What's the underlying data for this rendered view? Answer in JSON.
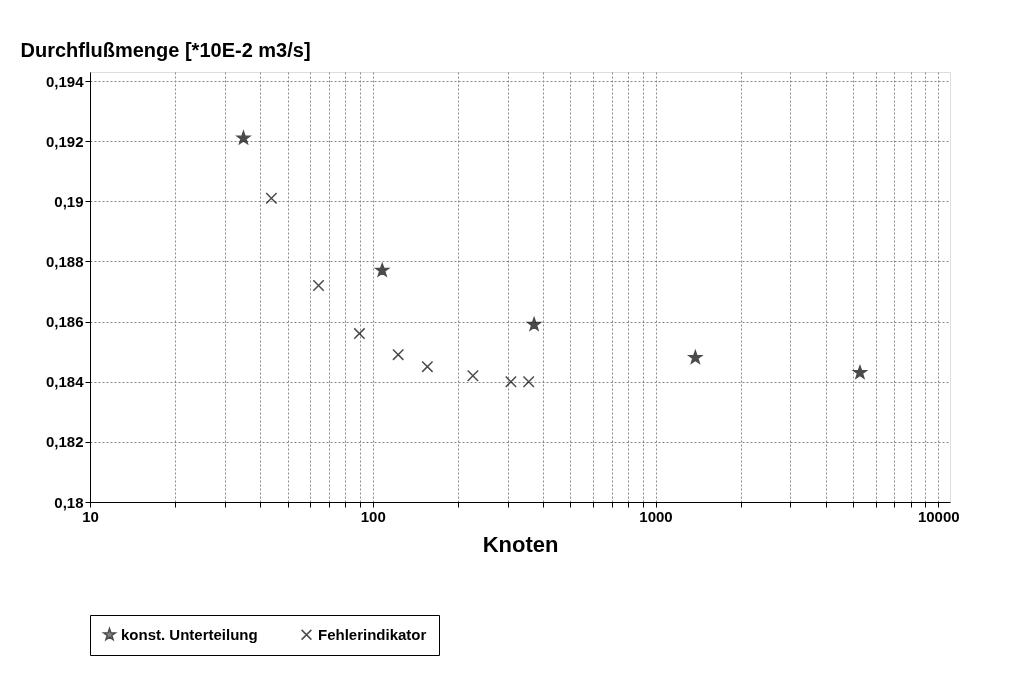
{
  "chart_data": {
    "type": "scatter",
    "ylabel": "Durchflußmenge [*10E-2 m3/s]",
    "xlabel": "Knoten",
    "log": "x",
    "grid": true,
    "legend": "bottom",
    "xlim": [
      10,
      11000
    ],
    "ylim": [
      0.18,
      0.1943
    ],
    "xticks": [
      10,
      {
        "value": 20,
        "label": null
      },
      {
        "value": 30,
        "label": null
      },
      {
        "value": 40,
        "label": null
      },
      {
        "value": 50,
        "label": null
      },
      {
        "value": 60,
        "label": null
      },
      {
        "value": 70,
        "label": null
      },
      {
        "value": 80,
        "label": null
      },
      {
        "value": 90,
        "label": null
      },
      100,
      {
        "value": 200,
        "label": null
      },
      {
        "value": 300,
        "label": null
      },
      {
        "value": 400,
        "label": null
      },
      {
        "value": 500,
        "label": null
      },
      {
        "value": 600,
        "label": null
      },
      {
        "value": 700,
        "label": null
      },
      {
        "value": 800,
        "label": null
      },
      {
        "value": 900,
        "label": null
      },
      1000,
      {
        "value": 2000,
        "label": null
      },
      {
        "value": 3000,
        "label": null
      },
      {
        "value": 4000,
        "label": null
      },
      {
        "value": 5000,
        "label": null
      },
      {
        "value": 6000,
        "label": null
      },
      {
        "value": 7000,
        "label": null
      },
      {
        "value": 8000,
        "label": null
      },
      {
        "value": 9000,
        "label": null
      },
      10000
    ],
    "yticks": [
      {
        "value": 0.18,
        "label": "0,18"
      },
      {
        "value": 0.182,
        "label": "0,182"
      },
      {
        "value": 0.184,
        "label": "0,184"
      },
      {
        "value": 0.186,
        "label": "0,186"
      },
      {
        "value": 0.188,
        "label": "0,188"
      },
      {
        "value": 0.19,
        "label": "0,19"
      },
      {
        "value": 0.192,
        "label": "0,192"
      },
      {
        "value": 0.194,
        "label": "0,194"
      }
    ],
    "series": [
      {
        "name": "konst. Unterteilung",
        "color": "#000000",
        "marker": "star",
        "x": [
          34.9,
          108,
          372,
          1383,
          5284
        ],
        "values": [
          0.1921,
          0.1877,
          0.1859,
          0.1848,
          0.1843
        ]
      },
      {
        "name": "Fehlerindikator",
        "color": "#000000",
        "marker": "cross",
        "x": [
          43.8,
          64.3,
          89.7,
          123,
          156,
          226,
          308,
          356
        ],
        "values": [
          0.1901,
          0.1872,
          0.1856,
          0.1849,
          0.1845,
          0.1842,
          0.184,
          0.184
        ]
      }
    ]
  }
}
